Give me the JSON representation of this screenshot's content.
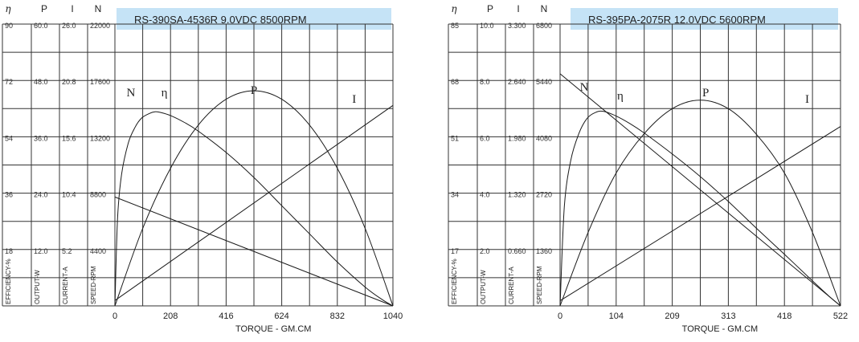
{
  "colors": {
    "title_bg": "#c5e3f6",
    "line": "#1a1a1a",
    "grid": "#333333"
  },
  "chart_data": [
    {
      "type": "line",
      "title": "RS-390SA-4536R    9.0VDC    8500RPM",
      "xlabel": "TORQUE - GM.CM",
      "xlim": [
        0,
        1040
      ],
      "x_ticks": [
        "0",
        "208",
        "416",
        "624",
        "832",
        "1040"
      ],
      "columns": [
        {
          "header": "η",
          "label": "EFFICIENCY-%",
          "ticks": [
            "90",
            "72",
            "54",
            "36",
            "18"
          ],
          "max": 90
        },
        {
          "header": "P",
          "label": "OUTPUT-W",
          "ticks": [
            "60.0",
            "48.0",
            "36.0",
            "24.0",
            "12.0"
          ],
          "max": 60
        },
        {
          "header": "I",
          "label": "CURRENT-A",
          "ticks": [
            "26.0",
            "20.8",
            "15.6",
            "10.4",
            "5.2"
          ],
          "max": 26
        },
        {
          "header": "N",
          "label": "SPEED-RPM",
          "ticks": [
            "22000",
            "17600",
            "13200",
            "8800",
            "4400"
          ],
          "max": 22000
        }
      ],
      "series": [
        {
          "name": "N",
          "label_at": [
            60,
            115
          ],
          "points": [
            [
              0,
              8500
            ],
            [
              1040,
              0
            ]
          ]
        },
        {
          "name": "η",
          "label_at": [
            185,
            115
          ],
          "points": [
            [
              0,
              0
            ],
            [
              10,
              28
            ],
            [
              25,
              42
            ],
            [
              50,
              52
            ],
            [
              75,
              57
            ],
            [
              100,
              60
            ],
            [
              130,
              61.5
            ],
            [
              150,
              62
            ],
            [
              170,
              61.8
            ],
            [
              208,
              60.8
            ],
            [
              260,
              58.6
            ],
            [
              312,
              55.8
            ],
            [
              416,
              49
            ],
            [
              520,
              41
            ],
            [
              624,
              32
            ],
            [
              728,
              23
            ],
            [
              832,
              14
            ],
            [
              936,
              6
            ],
            [
              1000,
              2
            ],
            [
              1040,
              0
            ]
          ]
        },
        {
          "name": "P",
          "label_at": [
            520,
            112
          ],
          "points": [
            [
              0,
              0
            ],
            [
              104,
              16.5
            ],
            [
              208,
              29.3
            ],
            [
              312,
              38.5
            ],
            [
              416,
              44
            ],
            [
              520,
              45.8
            ],
            [
              624,
              44
            ],
            [
              728,
              38.5
            ],
            [
              832,
              29.3
            ],
            [
              936,
              16.5
            ],
            [
              1040,
              0
            ]
          ]
        },
        {
          "name": "I",
          "label_at": [
            895,
            123
          ],
          "points": [
            [
              0,
              0.5
            ],
            [
              1040,
              18.5
            ]
          ]
        }
      ]
    },
    {
      "type": "line",
      "title": "RS-395PA-2075R    12.0VDC   5600RPM",
      "xlabel": "TORQUE - GM.CM",
      "xlim": [
        0,
        522
      ],
      "x_ticks": [
        "0",
        "104",
        "209",
        "313",
        "418",
        "522"
      ],
      "columns": [
        {
          "header": "η",
          "label": "EFFICIENCY-%",
          "ticks": [
            "85",
            "68",
            "51",
            "34",
            "17"
          ],
          "max": 85
        },
        {
          "header": "P",
          "label": "OUTPUT-W",
          "ticks": [
            "10.0",
            "8.0",
            "6.0",
            "4.0",
            "2.0"
          ],
          "max": 10
        },
        {
          "header": "I",
          "label": "CURRENT-A",
          "ticks": [
            "3.300",
            "2.640",
            "1.980",
            "1.320",
            "0.660"
          ],
          "max": 3.3
        },
        {
          "header": "N",
          "label": "SPEED-RPM",
          "ticks": [
            "6800",
            "5440",
            "4080",
            "2720",
            "1360"
          ],
          "max": 6800
        }
      ],
      "series": [
        {
          "name": "N",
          "label_at": [
            45,
            108
          ],
          "points": [
            [
              0,
              5600
            ],
            [
              522,
              0
            ]
          ]
        },
        {
          "name": "η",
          "label_at": [
            112,
            119
          ],
          "points": [
            [
              0,
              0
            ],
            [
              8,
              30
            ],
            [
              20,
              44
            ],
            [
              35,
              52
            ],
            [
              50,
              56.5
            ],
            [
              65,
              58.3
            ],
            [
              80,
              58.7
            ],
            [
              104,
              57.3
            ],
            [
              130,
              55
            ],
            [
              156,
              52.2
            ],
            [
              209,
              45.8
            ],
            [
              261,
              39
            ],
            [
              313,
              31.5
            ],
            [
              365,
              23.5
            ],
            [
              418,
              15.5
            ],
            [
              470,
              7.5
            ],
            [
              500,
              3
            ],
            [
              522,
              0
            ]
          ]
        },
        {
          "name": "P",
          "label_at": [
            271,
            115
          ],
          "points": [
            [
              0,
              0
            ],
            [
              52,
              2.6
            ],
            [
              104,
              4.7
            ],
            [
              156,
              6.1
            ],
            [
              209,
              7.0
            ],
            [
              261,
              7.3
            ],
            [
              313,
              7.0
            ],
            [
              365,
              6.1
            ],
            [
              418,
              4.7
            ],
            [
              470,
              2.6
            ],
            [
              522,
              0
            ]
          ]
        },
        {
          "name": "I",
          "label_at": [
            460,
            123
          ],
          "points": [
            [
              0,
              0.06
            ],
            [
              522,
              2.1
            ]
          ]
        }
      ]
    }
  ]
}
